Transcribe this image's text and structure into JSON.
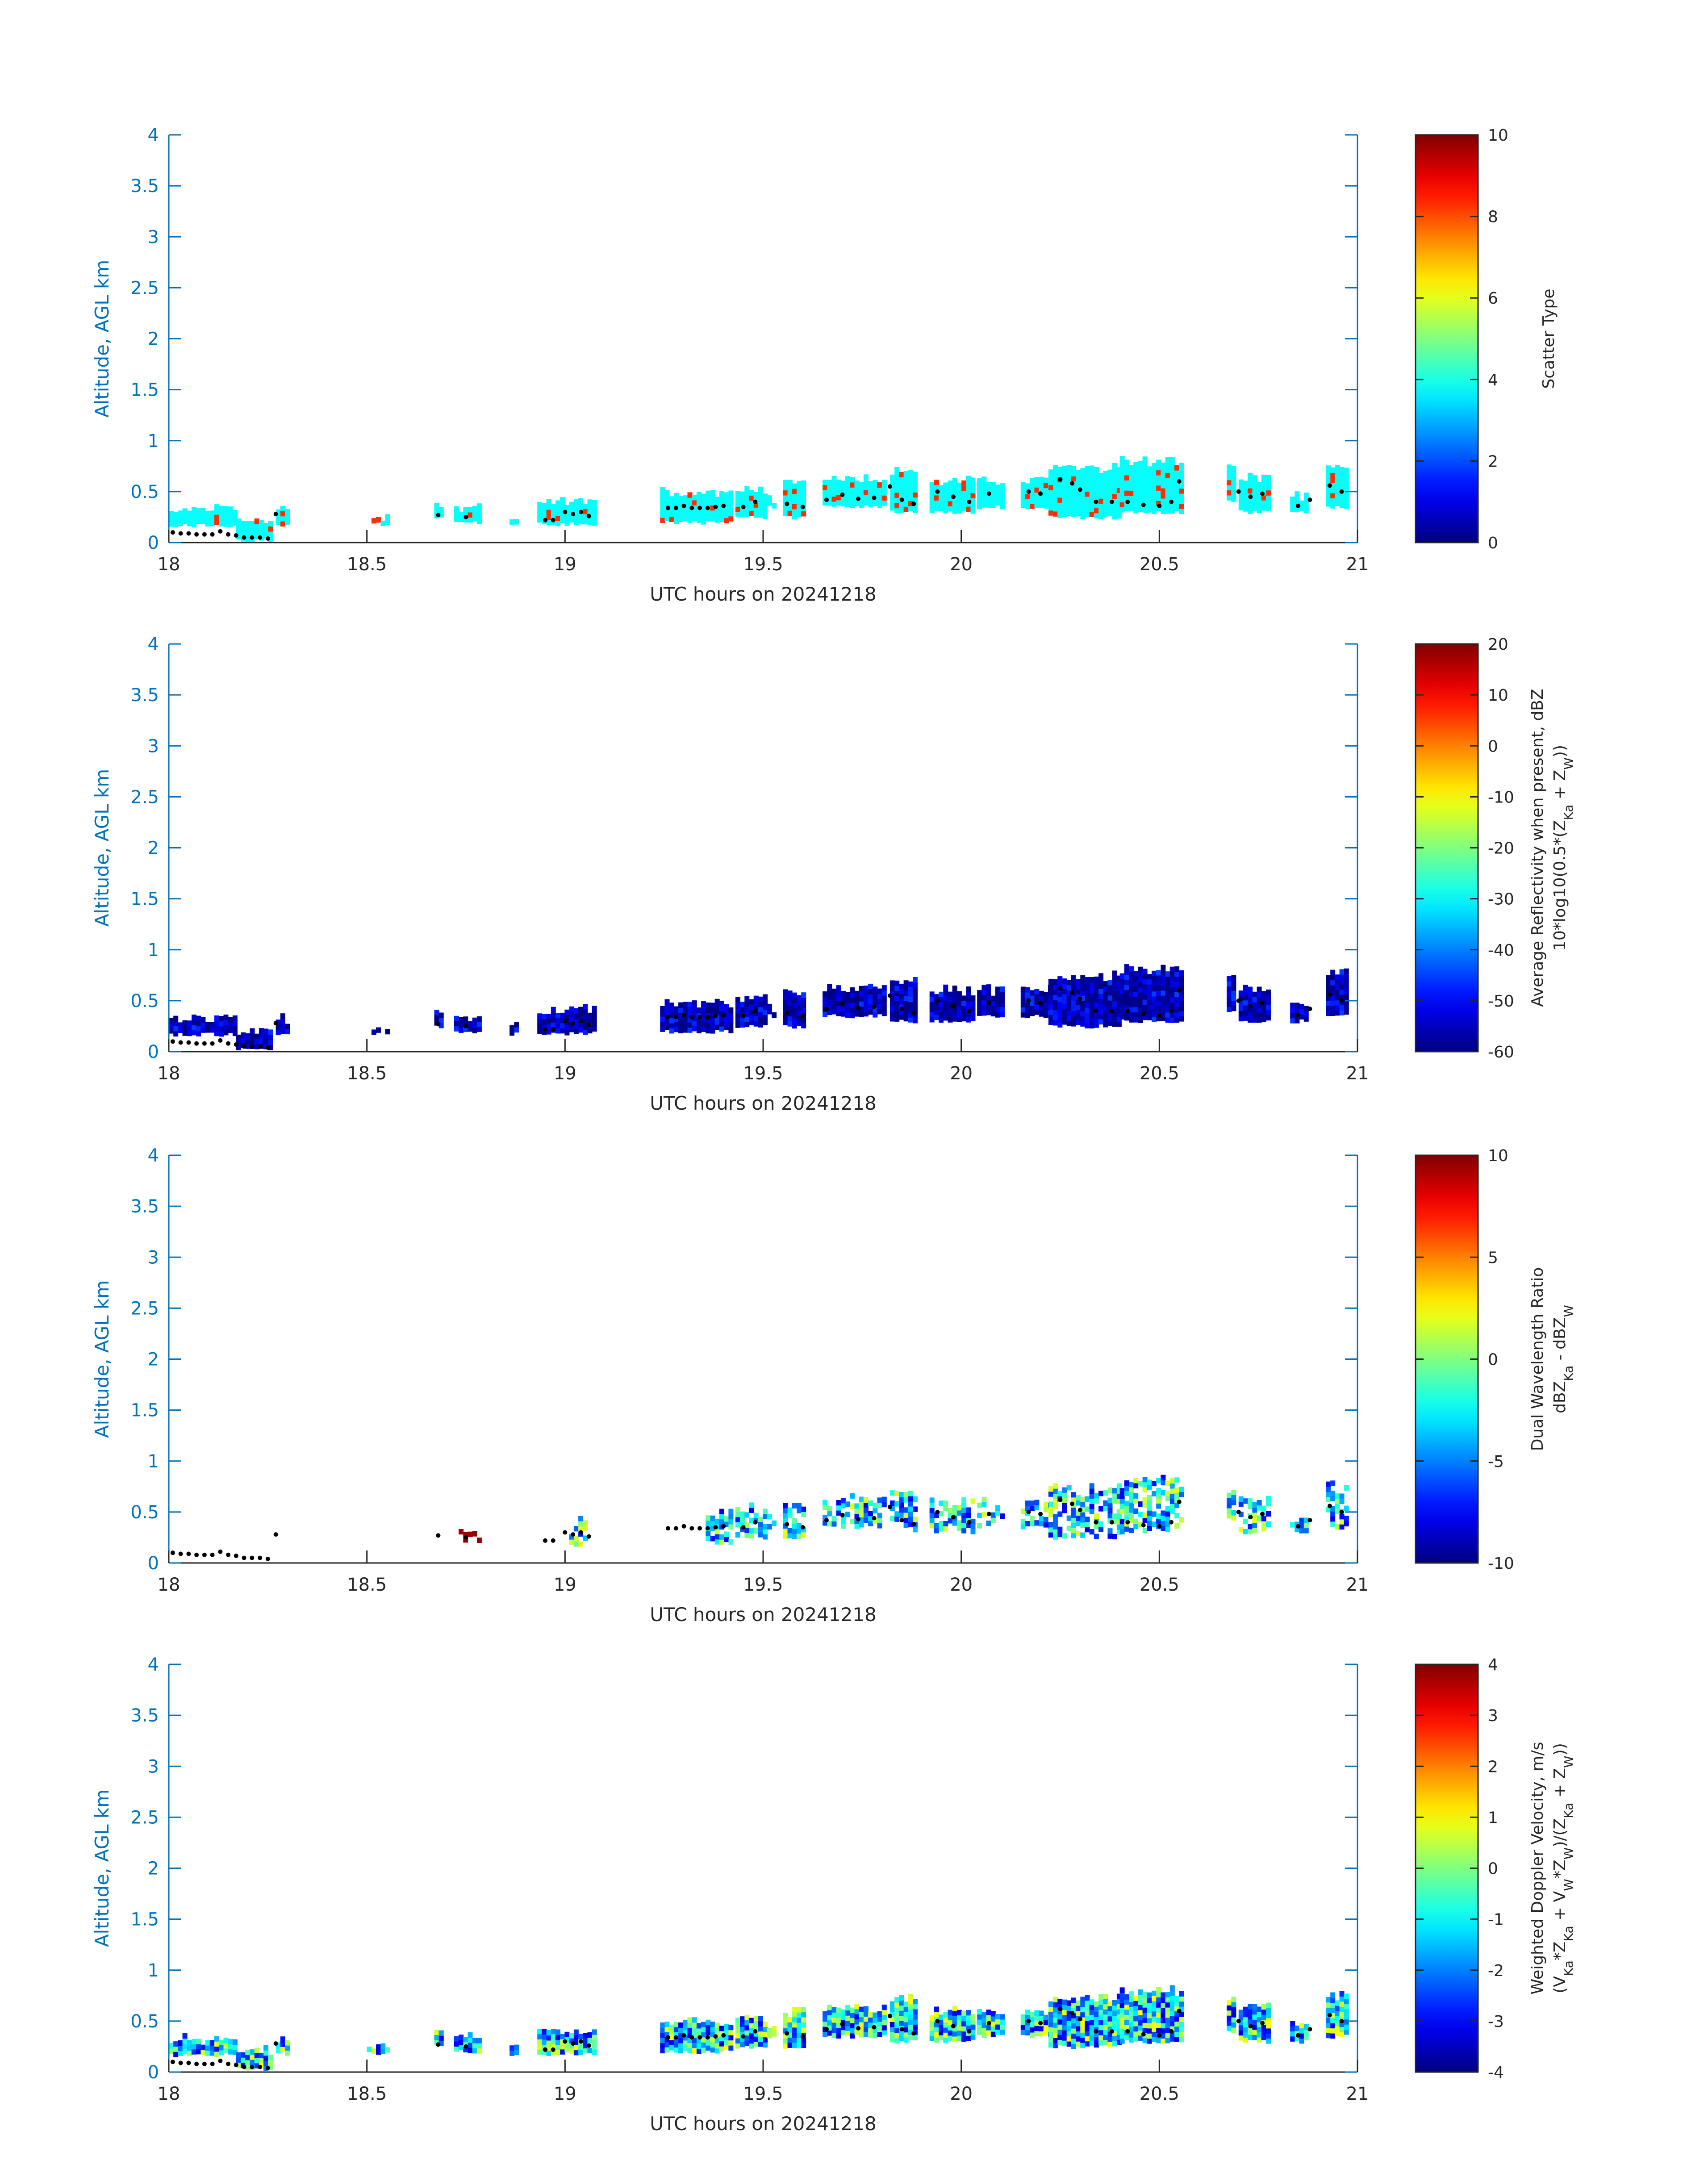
{
  "colors": {
    "axis": "#0072BD",
    "text": "#262626",
    "background": "#ffffff",
    "centerline_points": "#000000",
    "colormap": "jet"
  },
  "chart_data": [
    {
      "type": "heatmap",
      "panel": "scatter-type",
      "ylabel": "Altitude, AGL km",
      "xlabel": "UTC hours on 20241218",
      "xlim": [
        18,
        21
      ],
      "ylim": [
        0,
        4
      ],
      "xticks": [
        "18",
        "18.5",
        "19",
        "19.5",
        "20",
        "20.5",
        "21"
      ],
      "yticks": [
        "0",
        "0.5",
        "1",
        "1.5",
        "2",
        "2.5",
        "3",
        "3.5",
        "4"
      ],
      "colorbar": {
        "label_lines": [
          "Scatter Type"
        ],
        "range": [
          0,
          10
        ],
        "ticks": [
          "0",
          "2",
          "4",
          "6",
          "8",
          "10"
        ]
      },
      "dominant_value": 3.8,
      "secondary_value": 8.3,
      "secondary_fraction": 0.07,
      "grid": false
    },
    {
      "type": "heatmap",
      "panel": "reflectivity",
      "ylabel": "Altitude, AGL km",
      "xlabel": "UTC hours on 20241218",
      "xlim": [
        18,
        21
      ],
      "ylim": [
        0,
        4
      ],
      "xticks": [
        "18",
        "18.5",
        "19",
        "19.5",
        "20",
        "20.5",
        "21"
      ],
      "yticks": [
        "0",
        "0.5",
        "1",
        "1.5",
        "2",
        "2.5",
        "3",
        "3.5",
        "4"
      ],
      "colorbar": {
        "label_lines": [
          "Average Reflectivity when present, dBZ",
          "10*log10(0.5*(Z_Ka + Z_W))"
        ],
        "range": [
          -60,
          20
        ],
        "ticks": [
          "-60",
          "-50",
          "-40",
          "-30",
          "-20",
          "-10",
          "0",
          "10",
          "20"
        ]
      },
      "value_range": [
        -60,
        -45
      ],
      "grid": false
    },
    {
      "type": "heatmap",
      "panel": "dual-wavelength-ratio",
      "ylabel": "Altitude, AGL km",
      "xlabel": "UTC hours on 20241218",
      "xlim": [
        18,
        21
      ],
      "ylim": [
        0,
        4
      ],
      "xticks": [
        "18",
        "18.5",
        "19",
        "19.5",
        "20",
        "20.5",
        "21"
      ],
      "yticks": [
        "0",
        "0.5",
        "1",
        "1.5",
        "2",
        "2.5",
        "3",
        "3.5",
        "4"
      ],
      "colorbar": {
        "label_lines": [
          "Dual Wavelength Ratio",
          "dBZ_Ka - dBZ_W"
        ],
        "range": [
          -10,
          10
        ],
        "ticks": [
          "-10",
          "-5",
          "0",
          "5",
          "10"
        ]
      },
      "value_range": [
        -8,
        2
      ],
      "grid": false
    },
    {
      "type": "heatmap",
      "panel": "doppler-velocity",
      "ylabel": "Altitude, AGL km",
      "xlabel": "UTC hours on 20241218",
      "xlim": [
        18,
        21
      ],
      "ylim": [
        0,
        4
      ],
      "xticks": [
        "18",
        "18.5",
        "19",
        "19.5",
        "20",
        "20.5",
        "21"
      ],
      "yticks": [
        "0",
        "0.5",
        "1",
        "1.5",
        "2",
        "2.5",
        "3",
        "3.5",
        "4"
      ],
      "colorbar": {
        "label_lines": [
          "Weighted Doppler Velocity, m/s",
          "(V_Ka*Z_Ka + V_W*Z_W)/(Z_Ka + Z_W))"
        ],
        "range": [
          -4,
          4
        ],
        "ticks": [
          "-4",
          "-3",
          "-2",
          "-1",
          "0",
          "1",
          "2",
          "3",
          "4"
        ]
      },
      "value_range": [
        -3,
        1
      ],
      "grid": false
    }
  ],
  "echo_segments": [
    {
      "x": [
        18.0,
        18.17
      ],
      "top": 0.34,
      "base": 0.17
    },
    {
      "x": [
        18.17,
        18.26
      ],
      "top": 0.22,
      "base": 0.03
    },
    {
      "x": [
        18.27,
        18.3
      ],
      "top": 0.33,
      "base": 0.18
    },
    {
      "x": [
        18.5,
        18.55
      ],
      "top": 0.25,
      "base": 0.18
    },
    {
      "x": [
        18.67,
        18.69
      ],
      "top": 0.4,
      "base": 0.25
    },
    {
      "x": [
        18.72,
        18.78
      ],
      "top": 0.35,
      "base": 0.2
    },
    {
      "x": [
        18.86,
        18.88
      ],
      "top": 0.25,
      "base": 0.18
    },
    {
      "x": [
        18.93,
        19.07
      ],
      "top": 0.42,
      "base": 0.18
    },
    {
      "x": [
        19.24,
        19.42
      ],
      "top": 0.5,
      "base": 0.2
    },
    {
      "x": [
        19.43,
        19.5
      ],
      "top": 0.55,
      "base": 0.25
    },
    {
      "x": [
        19.51,
        19.53
      ],
      "top": 0.45,
      "base": 0.35
    },
    {
      "x": [
        19.55,
        19.6
      ],
      "top": 0.6,
      "base": 0.25
    },
    {
      "x": [
        19.65,
        19.8
      ],
      "top": 0.65,
      "base": 0.35
    },
    {
      "x": [
        19.82,
        19.88
      ],
      "top": 0.72,
      "base": 0.3
    },
    {
      "x": [
        19.92,
        20.03
      ],
      "top": 0.62,
      "base": 0.3
    },
    {
      "x": [
        20.04,
        20.1
      ],
      "top": 0.62,
      "base": 0.35
    },
    {
      "x": [
        20.15,
        20.22
      ],
      "top": 0.62,
      "base": 0.35
    },
    {
      "x": [
        20.22,
        20.4
      ],
      "top": 0.75,
      "base": 0.25
    },
    {
      "x": [
        20.4,
        20.56
      ],
      "top": 0.82,
      "base": 0.3
    },
    {
      "x": [
        20.67,
        20.69
      ],
      "top": 0.75,
      "base": 0.4
    },
    {
      "x": [
        20.7,
        20.77
      ],
      "top": 0.65,
      "base": 0.3
    },
    {
      "x": [
        20.83,
        20.87
      ],
      "top": 0.48,
      "base": 0.3
    },
    {
      "x": [
        20.92,
        20.97
      ],
      "top": 0.78,
      "base": 0.35
    }
  ],
  "centerline_points": [
    [
      18.01,
      0.1
    ],
    [
      18.03,
      0.09
    ],
    [
      18.05,
      0.09
    ],
    [
      18.07,
      0.08
    ],
    [
      18.09,
      0.08
    ],
    [
      18.11,
      0.08
    ],
    [
      18.13,
      0.11
    ],
    [
      18.15,
      0.08
    ],
    [
      18.17,
      0.07
    ],
    [
      18.19,
      0.05
    ],
    [
      18.21,
      0.05
    ],
    [
      18.23,
      0.05
    ],
    [
      18.25,
      0.04
    ],
    [
      18.27,
      0.28
    ],
    [
      18.68,
      0.27
    ],
    [
      18.75,
      0.25
    ],
    [
      18.95,
      0.22
    ],
    [
      18.97,
      0.22
    ],
    [
      19.0,
      0.3
    ],
    [
      19.02,
      0.28
    ],
    [
      19.04,
      0.3
    ],
    [
      19.06,
      0.26
    ],
    [
      19.26,
      0.34
    ],
    [
      19.28,
      0.34
    ],
    [
      19.3,
      0.36
    ],
    [
      19.32,
      0.34
    ],
    [
      19.34,
      0.34
    ],
    [
      19.36,
      0.34
    ],
    [
      19.38,
      0.35
    ],
    [
      19.4,
      0.36
    ],
    [
      19.45,
      0.35
    ],
    [
      19.48,
      0.4
    ],
    [
      19.56,
      0.38
    ],
    [
      19.6,
      0.35
    ],
    [
      19.66,
      0.42
    ],
    [
      19.7,
      0.47
    ],
    [
      19.74,
      0.43
    ],
    [
      19.78,
      0.44
    ],
    [
      19.82,
      0.55
    ],
    [
      19.85,
      0.42
    ],
    [
      19.88,
      0.38
    ],
    [
      19.94,
      0.5
    ],
    [
      19.98,
      0.45
    ],
    [
      20.02,
      0.4
    ],
    [
      20.07,
      0.48
    ],
    [
      20.17,
      0.5
    ],
    [
      20.2,
      0.48
    ],
    [
      20.25,
      0.62
    ],
    [
      20.28,
      0.58
    ],
    [
      20.3,
      0.52
    ],
    [
      20.34,
      0.4
    ],
    [
      20.38,
      0.4
    ],
    [
      20.42,
      0.4
    ],
    [
      20.46,
      0.37
    ],
    [
      20.5,
      0.36
    ],
    [
      20.53,
      0.4
    ],
    [
      20.55,
      0.6
    ],
    [
      20.7,
      0.5
    ],
    [
      20.73,
      0.45
    ],
    [
      20.76,
      0.48
    ],
    [
      20.85,
      0.36
    ],
    [
      20.88,
      0.42
    ],
    [
      20.93,
      0.56
    ],
    [
      20.96,
      0.5
    ]
  ]
}
